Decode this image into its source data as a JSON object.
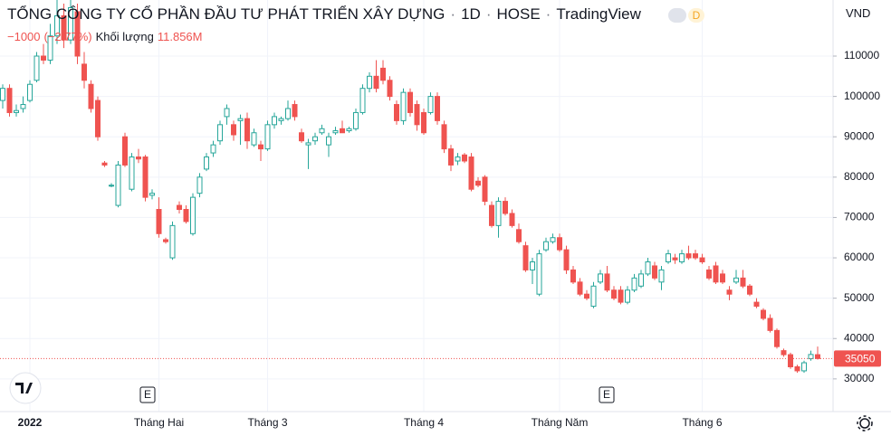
{
  "header": {
    "name": "TỔNG CÔNG TY CỔ PHẦN ĐẦU TƯ PHÁT TRIỂN XÂY DỰNG",
    "interval": "1D",
    "exchange": "HOSE",
    "source": "TradingView",
    "badge": "D",
    "currency": "VND",
    "change": "−1000",
    "change_pct": "(−2.77%)",
    "volume_label": "Khối lượng",
    "volume": "11.856M"
  },
  "chart_data": {
    "type": "candlestick",
    "up_color": "#26a69a",
    "down_color": "#ef5350",
    "grid": true,
    "ylim": [
      21900,
      123900
    ],
    "yticks": [
      30000,
      40000,
      50000,
      60000,
      70000,
      80000,
      90000,
      100000,
      110000
    ],
    "last_price": 35050,
    "events": [
      "E",
      "E"
    ],
    "categories": [
      null,
      null,
      null,
      null,
      "2022",
      null,
      null,
      null,
      null,
      null,
      null,
      null,
      null,
      null,
      null,
      null,
      null,
      null,
      null,
      null,
      null,
      null,
      null,
      "Tháng Hai",
      null,
      null,
      null,
      null,
      null,
      null,
      null,
      null,
      null,
      null,
      null,
      null,
      null,
      null,
      null,
      "Tháng 3",
      null,
      null,
      null,
      null,
      null,
      null,
      null,
      null,
      null,
      null,
      null,
      null,
      null,
      null,
      null,
      null,
      null,
      null,
      null,
      null,
      null,
      null,
      "Tháng 4",
      null,
      null,
      null,
      null,
      null,
      null,
      null,
      null,
      null,
      null,
      null,
      null,
      null,
      null,
      null,
      null,
      null,
      null,
      null,
      "Tháng Năm",
      null,
      null,
      null,
      null,
      null,
      null,
      null,
      null,
      null,
      null,
      null,
      null,
      null,
      null,
      null,
      null,
      null,
      null,
      null,
      null,
      "Tháng 6",
      null,
      null,
      null,
      null,
      null,
      null,
      null,
      null,
      null,
      null,
      null,
      null,
      null,
      null,
      null,
      null,
      null
    ],
    "candles": [
      [
        99000,
        103000,
        97000,
        102000
      ],
      [
        102000,
        103000,
        95000,
        96000
      ],
      [
        96000,
        98000,
        95000,
        96500
      ],
      [
        97000,
        100000,
        96000,
        98000
      ],
      [
        99000,
        104000,
        98500,
        103000
      ],
      [
        104000,
        111000,
        103500,
        110000
      ],
      [
        110000,
        113000,
        108000,
        109000
      ],
      [
        109000,
        118000,
        108000,
        115000
      ],
      [
        115000,
        125000,
        113000,
        120000
      ],
      [
        120000,
        123000,
        112000,
        114000
      ],
      [
        114000,
        125000,
        113000,
        122000
      ],
      [
        121000,
        123000,
        108000,
        110000
      ],
      [
        108000,
        111000,
        102000,
        104000
      ],
      [
        103000,
        104000,
        96000,
        97000
      ],
      [
        99000,
        100000,
        89000,
        90000
      ],
      [
        83500,
        84000,
        82500,
        83000
      ],
      [
        78000,
        78500,
        77500,
        78000
      ],
      [
        73000,
        84000,
        72500,
        83000
      ],
      [
        90000,
        91000,
        82500,
        83000
      ],
      [
        77000,
        86000,
        76500,
        85000
      ],
      [
        85000,
        87000,
        83500,
        84500
      ],
      [
        85000,
        85500,
        74000,
        75000
      ],
      [
        75500,
        77000,
        74500,
        76000
      ],
      [
        72000,
        75000,
        65000,
        66000
      ],
      [
        64500,
        65000,
        63500,
        64000
      ],
      [
        60000,
        69000,
        59500,
        68000
      ],
      [
        73000,
        74000,
        71000,
        72000
      ],
      [
        72000,
        73000,
        68500,
        69000
      ],
      [
        66000,
        76000,
        65500,
        75000
      ],
      [
        76000,
        81000,
        75000,
        80000
      ],
      [
        82000,
        86000,
        81500,
        85000
      ],
      [
        86000,
        89000,
        85000,
        88000
      ],
      [
        89000,
        94000,
        88000,
        93000
      ],
      [
        95000,
        98000,
        93000,
        97000
      ],
      [
        93000,
        94000,
        89000,
        90500
      ],
      [
        94000,
        95500,
        88000,
        94500
      ],
      [
        94500,
        96000,
        87000,
        89000
      ],
      [
        88000,
        92000,
        87500,
        91000
      ],
      [
        88000,
        89000,
        84000,
        87000
      ],
      [
        87000,
        94000,
        86500,
        93000
      ],
      [
        93000,
        96000,
        92000,
        95000
      ],
      [
        94000,
        95000,
        93000,
        94500
      ],
      [
        94500,
        99000,
        94000,
        97000
      ],
      [
        98000,
        99000,
        94000,
        95000
      ],
      [
        91000,
        92000,
        88500,
        89000
      ],
      [
        88000,
        89500,
        82000,
        88500
      ],
      [
        89000,
        91000,
        88000,
        90000
      ],
      [
        91000,
        93000,
        90500,
        92000
      ],
      [
        88000,
        91000,
        85000,
        90000
      ],
      [
        91000,
        92500,
        90500,
        91500
      ],
      [
        92000,
        94000,
        91000,
        91000
      ],
      [
        91500,
        92500,
        91000,
        92000
      ],
      [
        92000,
        97000,
        91500,
        96000
      ],
      [
        96000,
        103000,
        95500,
        102000
      ],
      [
        102000,
        106000,
        101000,
        105000
      ],
      [
        105000,
        109000,
        101000,
        102000
      ],
      [
        107000,
        109000,
        103000,
        104000
      ],
      [
        104000,
        105000,
        99000,
        100000
      ],
      [
        98000,
        99000,
        93000,
        94000
      ],
      [
        94000,
        102000,
        93000,
        101000
      ],
      [
        101000,
        102000,
        95000,
        96000
      ],
      [
        98000,
        99000,
        91500,
        93000
      ],
      [
        96000,
        97000,
        90500,
        91000
      ],
      [
        96000,
        101000,
        95500,
        100000
      ],
      [
        100000,
        101000,
        93000,
        94000
      ],
      [
        93000,
        94000,
        86000,
        87000
      ],
      [
        87000,
        88000,
        81500,
        83000
      ],
      [
        84000,
        86000,
        83000,
        85000
      ],
      [
        85500,
        86000,
        83500,
        84000
      ],
      [
        85000,
        86000,
        76500,
        77000
      ],
      [
        79000,
        80000,
        77500,
        78000
      ],
      [
        80000,
        80500,
        73000,
        74000
      ],
      [
        73000,
        74000,
        67500,
        68000
      ],
      [
        68000,
        75000,
        65000,
        74000
      ],
      [
        74000,
        75000,
        70500,
        71000
      ],
      [
        71000,
        72000,
        67500,
        68000
      ],
      [
        67000,
        68500,
        63500,
        64000
      ],
      [
        63000,
        64000,
        56500,
        57000
      ],
      [
        57000,
        60000,
        53500,
        59000
      ],
      [
        51000,
        62000,
        50500,
        61000
      ],
      [
        62000,
        65000,
        61500,
        64000
      ],
      [
        64000,
        66000,
        63500,
        65000
      ],
      [
        65000,
        66000,
        61500,
        62000
      ],
      [
        62000,
        63000,
        56000,
        57000
      ],
      [
        57000,
        58000,
        53500,
        54000
      ],
      [
        54000,
        55000,
        50500,
        51000
      ],
      [
        51000,
        52000,
        49500,
        50000
      ],
      [
        48000,
        54000,
        47500,
        53000
      ],
      [
        54000,
        57000,
        53500,
        56000
      ],
      [
        56000,
        58000,
        51500,
        52000
      ],
      [
        52000,
        53000,
        49500,
        50000
      ],
      [
        52000,
        53000,
        48500,
        49000
      ],
      [
        49000,
        53000,
        48500,
        52000
      ],
      [
        52000,
        56000,
        51500,
        55000
      ],
      [
        53000,
        57000,
        52500,
        56000
      ],
      [
        56000,
        60000,
        55500,
        59000
      ],
      [
        58000,
        59000,
        54500,
        55000
      ],
      [
        54000,
        58000,
        52000,
        57000
      ],
      [
        59000,
        62000,
        58500,
        61000
      ],
      [
        60000,
        61000,
        58500,
        59500
      ],
      [
        59000,
        62000,
        58500,
        61000
      ],
      [
        61000,
        63000,
        59500,
        60000
      ],
      [
        61000,
        62000,
        59500,
        60000
      ],
      [
        60000,
        61000,
        58500,
        59000
      ],
      [
        57000,
        58000,
        54500,
        55000
      ],
      [
        58000,
        59000,
        53500,
        54000
      ],
      [
        56000,
        57000,
        53500,
        54000
      ],
      [
        52000,
        53000,
        49500,
        51000
      ],
      [
        54000,
        57000,
        53500,
        55000
      ],
      [
        55000,
        57000,
        52500,
        53000
      ],
      [
        53000,
        53500,
        50500,
        51000
      ],
      [
        49000,
        50000,
        47500,
        48000
      ],
      [
        47000,
        47500,
        44500,
        45000
      ],
      [
        45000,
        46000,
        41500,
        42000
      ],
      [
        42000,
        42500,
        37500,
        38000
      ],
      [
        37000,
        37500,
        35500,
        36000
      ],
      [
        36000,
        36500,
        32500,
        33000
      ],
      [
        33000,
        33500,
        31500,
        32000
      ],
      [
        32000,
        34500,
        31500,
        34000
      ],
      [
        35000,
        37000,
        34500,
        36050
      ],
      [
        36000,
        38000,
        34800,
        35050
      ]
    ]
  }
}
